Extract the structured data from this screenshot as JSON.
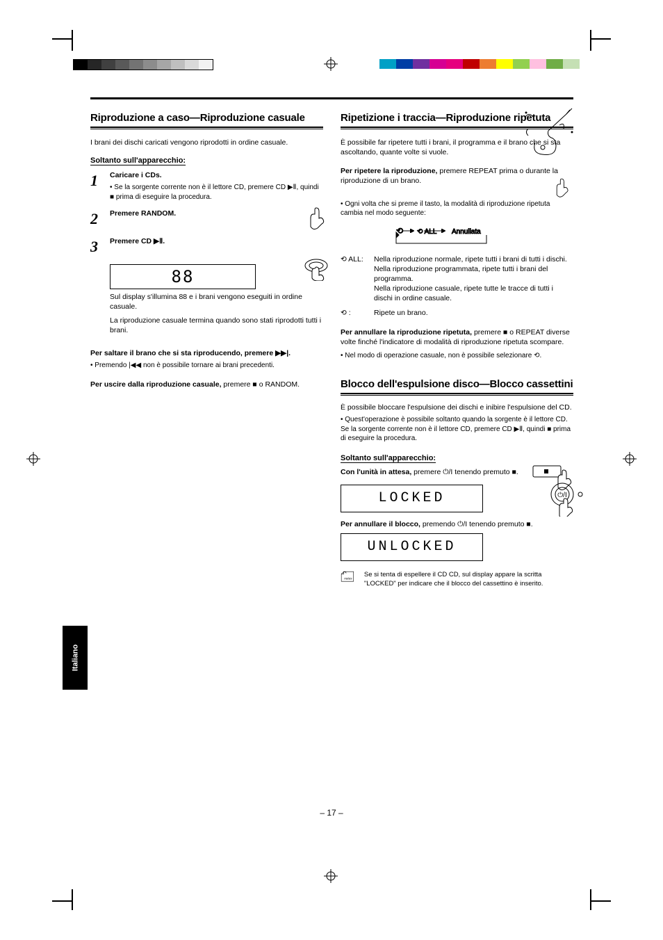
{
  "page_number": "– 17 –",
  "language_tab": "Italiano",
  "grayscale_colors": [
    "#000000",
    "#262626",
    "#404040",
    "#595959",
    "#737373",
    "#8c8c8c",
    "#a6a6a6",
    "#bfbfbf",
    "#d9d9d9",
    "#f2f2f2"
  ],
  "color_bar": [
    "#00a0c6",
    "#003da5",
    "#7030a0",
    "#d60093",
    "#e6007e",
    "#c00000",
    "#ed7d31",
    "#ffff00",
    "#92d050",
    "#ffc0e0",
    "#70ad47",
    "#c5e0b4"
  ],
  "left": {
    "heading": "Riproduzione a caso—Riproduzione casuale",
    "intro": "I brani dei dischi caricati vengono riprodotti in ordine casuale.",
    "only_unit": "Soltanto sull'apparecchio:",
    "step1": "Caricare i CDs.",
    "step1_note": "• Se la sorgente corrente non è il lettore CD, premere CD ▶Ⅱ, quindi ■ prima di eseguire la procedura.",
    "step2": "Premere RANDOM.",
    "step3_a": "Premere CD ▶Ⅱ.",
    "step3_b": "Sul display s'illumina 88 e i brani vengono eseguiti in ordine casuale.",
    "step3_c": "La riproduzione casuale termina quando sono stati riprodotti tutti i brani.",
    "skip_head": "Per saltare il brano che si sta riproducendo, premere ▶▶|.",
    "skip_note": "• Premendo |◀◀ non è possibile tornare ai brani precedenti.",
    "exit": "Per uscire dalla riproduzione casuale, premere ■ o RANDOM."
  },
  "right": {
    "heading": "Ripetizione i traccia—Riproduzione ripetuta",
    "intro": "È possibile far ripetere tutti i brani, il programma e il brano che si sta ascoltando, quante volte si vuole.",
    "repeat_head": "Per ripetere la riproduzione, premere REPEAT prima o durante la riproduzione di un brano.",
    "repeat_cycle_note": "• Ogni volta che si preme il tasto, la modalità di riproduzione ripetuta cambia nel modo seguente:",
    "cycle_labels": {
      "one": "⟲",
      "all": "⟲ ALL",
      "cancel": "Annullata"
    },
    "mode_all": "⟲ ALL:  Nella riproduzione normale, ripete tutti i brani di tutti i dischi.\nNella riproduzione programmata, ripete tutti i brani del programma.\nNella riproduzione casuale, ripete tutte le tracce di tutti i dischi in ordine casuale.",
    "mode_one": "⟲ :    Ripete un brano.",
    "cancel": "Per annullare la riproduzione ripetuta, premere ■ o REPEAT diverse volte finché l'indicatore di modalità di riproduzione ripetuta scompare.",
    "note_small": "• Nel modo di operazione casuale, non è possibile selezionare ⟲.",
    "lock_heading": "Blocco dell'espulsione disco—Blocco cassettini",
    "lock_intro": "È possibile bloccare l'espulsione dei dischi e inibire l'espulsione del CD.",
    "lock_note": "• Quest'operazione è possibile soltanto quando la sorgente è il lettore CD. Se la sorgente corrente non è il lettore CD, premere CD ▶Ⅱ, quindi ■ prima di eseguire la procedura.",
    "only_unit": "Soltanto sull'apparecchio:",
    "lock_action": "Con l'unità in attesa, premere ⏻/I tenendo premuto ■.",
    "lcd_locked": "LOCKED",
    "unlock_action": "Per annullare il blocco, premendo ⏻/I tenendo premuto ■.",
    "lcd_unlocked": "UNLOCKED",
    "notes_label": "Se si tenta di espellere il CD CD, sul display appare la scritta \"LOCKED\" per indicare che il blocco del cassettino è inserito."
  }
}
